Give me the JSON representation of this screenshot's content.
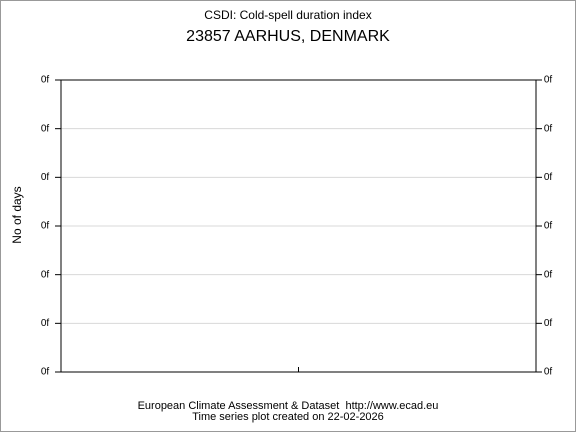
{
  "chart_data": {
    "type": "line",
    "title": "CSDI: Cold-spell duration index",
    "subtitle": "23857 AARHUS, DENMARK",
    "y_label": "No of days",
    "categories": [
      null
    ],
    "series": [],
    "ylim": [
      0,
      6
    ],
    "yticks": [
      {
        "value": 0,
        "label": "0f"
      },
      {
        "value": 1,
        "label": "0f"
      },
      {
        "value": 2,
        "label": "0f"
      },
      {
        "value": 3,
        "label": "0f"
      },
      {
        "value": 4,
        "label": "0f"
      },
      {
        "value": 5,
        "label": "0f"
      },
      {
        "value": 6,
        "label": "0f"
      }
    ],
    "grid": true,
    "right_axis": true,
    "annotations": [
      "European Climate Assessment & Dataset  http://www.ecad.eu",
      "Time series plot created on 22-02-2026"
    ]
  }
}
